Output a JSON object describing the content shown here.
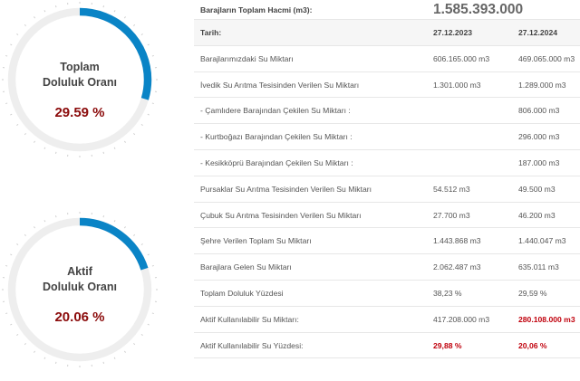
{
  "gauges": {
    "total": {
      "line1": "Toplam",
      "line2": "Doluluk Oranı",
      "percent_label": "29.59 %",
      "value": 29.59
    },
    "active": {
      "line1": "Aktif",
      "line2": "Doluluk Oranı",
      "percent_label": "20.06 %",
      "value": 20.06
    }
  },
  "colors": {
    "accent": "#0a84c6",
    "track": "#eeeeee",
    "highlight": "#c0000c",
    "percent_text": "#8b0b0b"
  },
  "table": {
    "volume_label": "Barajların Toplam Hacmi (m3):",
    "volume_value": "1.585.393.000",
    "date_label": "Tarih:",
    "date1": "27.12.2023",
    "date2": "27.12.2024",
    "rows": [
      {
        "label": "Barajlarımızdaki Su Miktarı",
        "v1": "606.165.000 m3",
        "v2": "469.065.000 m3"
      },
      {
        "label": "İvedik Su Arıtma Tesisinden Verilen Su Miktarı",
        "v1": "1.301.000 m3",
        "v2": "1.289.000 m3"
      },
      {
        "label": "- Çamlıdere Barajından Çekilen Su Miktarı :",
        "v1": "",
        "v2": "806.000 m3"
      },
      {
        "label": "- Kurtboğazı Barajından Çekilen Su Miktarı :",
        "v1": "",
        "v2": "296.000 m3"
      },
      {
        "label": "- Kesikköprü Barajından Çekilen Su Miktarı :",
        "v1": "",
        "v2": "187.000 m3"
      },
      {
        "label": "Pursaklar Su Arıtma Tesisinden Verilen Su Miktarı",
        "v1": "54.512 m3",
        "v2": "49.500 m3"
      },
      {
        "label": "Çubuk Su Arıtma Tesisinden Verilen Su Miktarı",
        "v1": "27.700 m3",
        "v2": "46.200 m3"
      },
      {
        "label": "Şehre Verilen Toplam Su Miktarı",
        "v1": "1.443.868 m3",
        "v2": "1.440.047 m3"
      },
      {
        "label": "Barajlara Gelen Su Miktarı",
        "v1": "2.062.487 m3",
        "v2": "635.011 m3"
      },
      {
        "label": "Toplam Doluluk Yüzdesi",
        "v1": "38,23 %",
        "v2": "29,59 %"
      },
      {
        "label": "Aktif Kullanılabilir Su Miktarı:",
        "v1": "417.208.000 m3",
        "v2": "280.108.000 m3"
      },
      {
        "label": "Aktif Kullanılabilir Su Yüzdesi:",
        "v1": "29,88 %",
        "v2": "20,06 %"
      }
    ]
  }
}
